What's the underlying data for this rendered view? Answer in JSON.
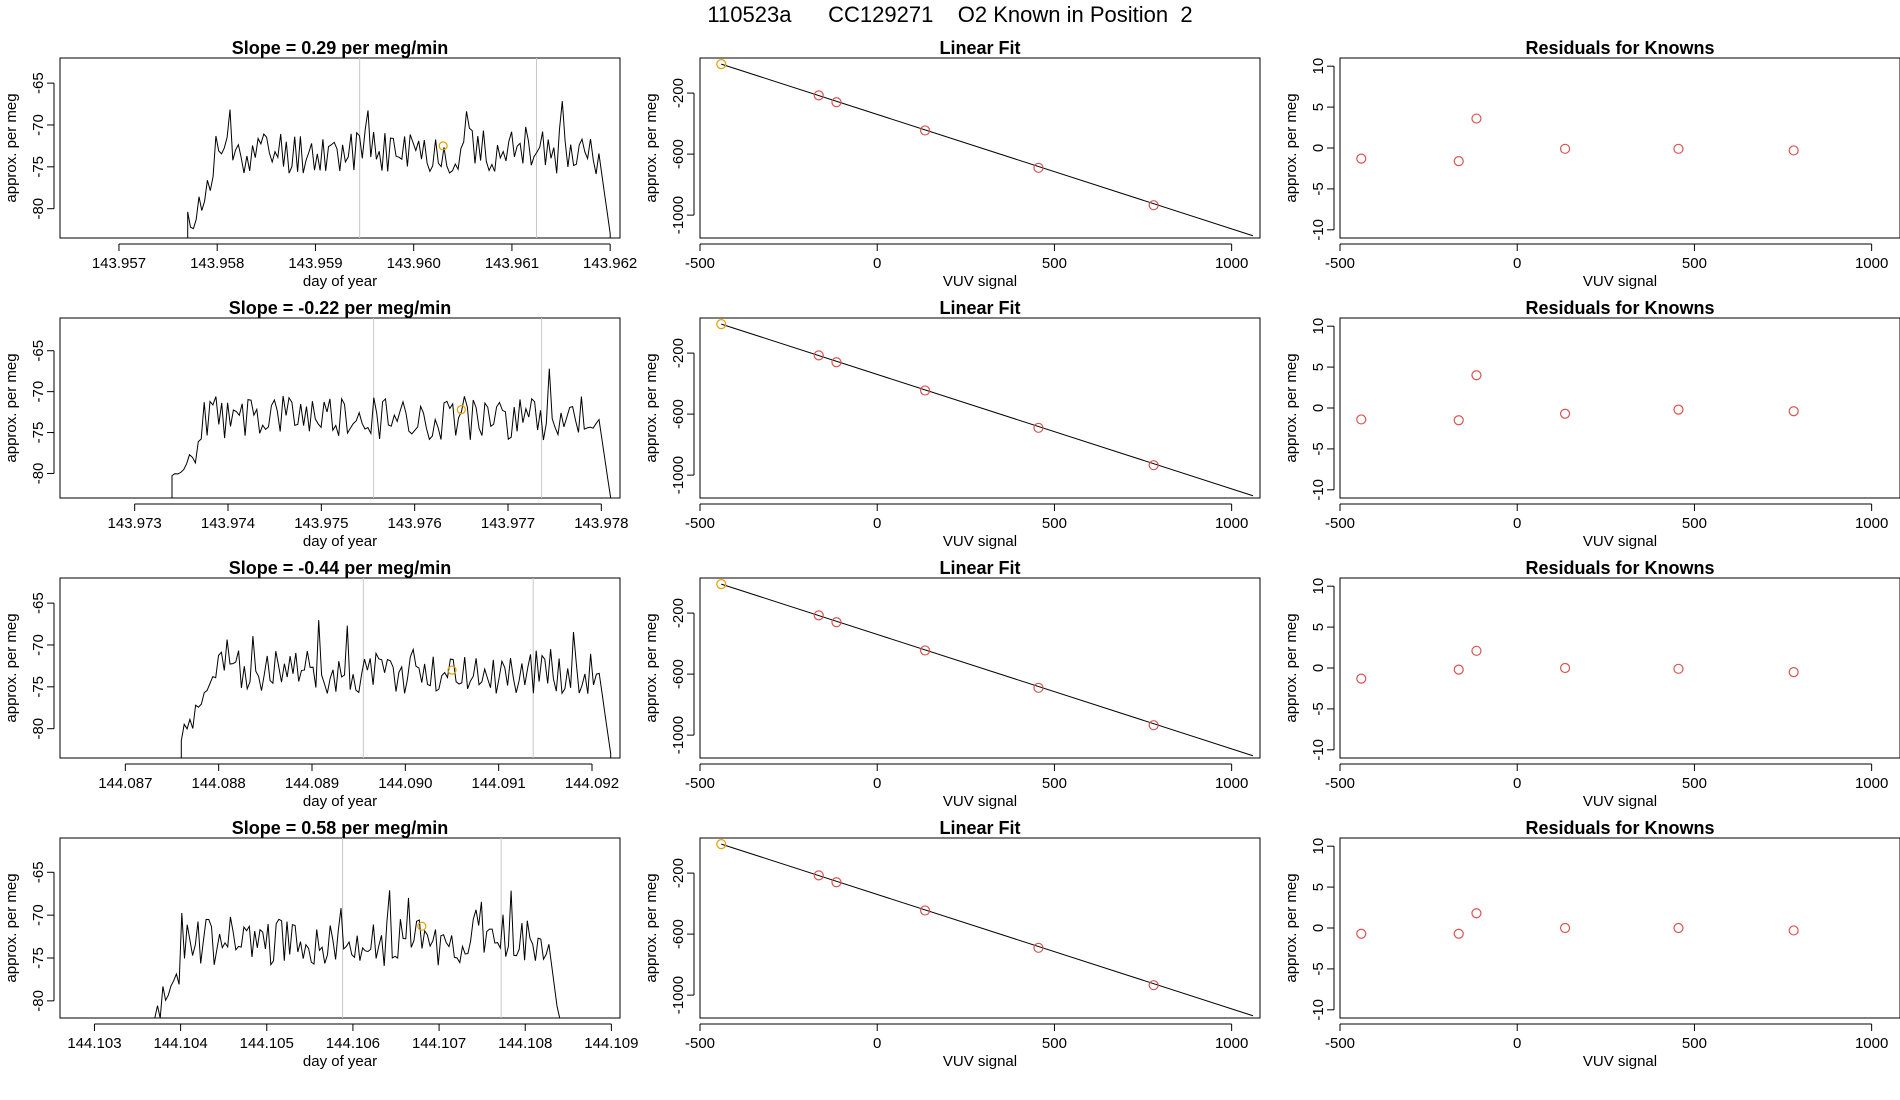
{
  "page": {
    "title": "110523a      CC129271    O2 Known in Position  2"
  },
  "colors": {
    "line": "#000000",
    "highlight": "#e69f00",
    "residual": "#d9534f",
    "vline": "#c8c8c8"
  },
  "chart_data": [
    {
      "type": "line",
      "row": 0,
      "title": "Slope =  0.29  per meg/min",
      "xlabel": "day of year",
      "ylabel": "approx. per meg",
      "xlim": [
        143.9564,
        143.9621
      ],
      "ylim": [
        -83.5,
        -62
      ],
      "xticks": [
        143.957,
        143.958,
        143.959,
        143.96,
        143.961,
        143.962
      ],
      "xtick_labels": [
        "143.957",
        "143.958",
        "143.959",
        "143.960",
        "143.961",
        "143.962"
      ],
      "yticks": [
        -80,
        -75,
        -70,
        -65
      ],
      "ytick_labels": [
        "-80",
        "-75",
        "-70",
        "-65"
      ],
      "baseline": -83.5,
      "series_start": 143.9577,
      "series_end": 143.962,
      "vlines": [
        143.95945,
        143.96125
      ],
      "highlight_point": {
        "x": 143.9603,
        "y": -72.5
      },
      "seed": 11
    },
    {
      "type": "scatter",
      "row": 0,
      "title": "Linear Fit",
      "xlabel": "VUV signal",
      "ylabel": "approx. per meg",
      "xlim": [
        -500,
        1080
      ],
      "ylim": [
        -1150,
        30
      ],
      "xticks": [
        -500,
        0,
        500,
        1000
      ],
      "xtick_labels": [
        "-500",
        "0",
        "500",
        "1000"
      ],
      "yticks": [
        -1000,
        -600,
        -200
      ],
      "ytick_labels": [
        "-1000",
        "-600",
        "-200"
      ],
      "fit_line": {
        "x": [
          -440,
          1060
        ],
        "y": [
          -10,
          -1135
        ]
      },
      "points": [
        {
          "x": -440,
          "y": -10
        },
        {
          "x": -165,
          "y": -215
        },
        {
          "x": -115,
          "y": -260
        },
        {
          "x": 135,
          "y": -445
        },
        {
          "x": 455,
          "y": -690
        },
        {
          "x": 780,
          "y": -935
        }
      ],
      "highlight_index": 0
    },
    {
      "type": "scatter",
      "row": 0,
      "title": "Residuals for Knowns",
      "xlabel": "VUV signal",
      "ylabel": "approx. per meg",
      "xlim": [
        -500,
        1080
      ],
      "ylim": [
        -11,
        11
      ],
      "xticks": [
        -500,
        0,
        500,
        1000
      ],
      "xtick_labels": [
        "-500",
        "0",
        "500",
        "1000"
      ],
      "yticks": [
        -10,
        -5,
        0,
        5,
        10
      ],
      "ytick_labels": [
        "-10",
        "-5",
        "0",
        "5",
        "10"
      ],
      "points": [
        {
          "x": -440,
          "y": -1.3
        },
        {
          "x": -165,
          "y": -1.6
        },
        {
          "x": -115,
          "y": 3.6
        },
        {
          "x": 135,
          "y": -0.1
        },
        {
          "x": 455,
          "y": -0.1
        },
        {
          "x": 780,
          "y": -0.3
        }
      ]
    },
    {
      "type": "line",
      "row": 1,
      "title": "Slope =  -0.22  per meg/min",
      "xlabel": "day of year",
      "ylabel": "approx. per meg",
      "xlim": [
        143.9722,
        143.9782
      ],
      "ylim": [
        -83,
        -61
      ],
      "xticks": [
        143.973,
        143.974,
        143.975,
        143.976,
        143.977,
        143.978
      ],
      "xtick_labels": [
        "143.973",
        "143.974",
        "143.975",
        "143.976",
        "143.977",
        "143.978"
      ],
      "yticks": [
        -80,
        -75,
        -70,
        -65
      ],
      "ytick_labels": [
        "-80",
        "-75",
        "-70",
        "-65"
      ],
      "baseline": -83,
      "series_start": 143.9734,
      "series_end": 143.9781,
      "vlines": [
        143.97556,
        143.97736
      ],
      "highlight_point": {
        "x": 143.9765,
        "y": -72.2
      },
      "seed": 23
    },
    {
      "type": "scatter",
      "row": 1,
      "title": "Linear Fit",
      "xlabel": "VUV signal",
      "ylabel": "approx. per meg",
      "xlim": [
        -500,
        1080
      ],
      "ylim": [
        -1150,
        30
      ],
      "xticks": [
        -500,
        0,
        500,
        1000
      ],
      "xtick_labels": [
        "-500",
        "0",
        "500",
        "1000"
      ],
      "yticks": [
        -1000,
        -600,
        -200
      ],
      "ytick_labels": [
        "-1000",
        "-600",
        "-200"
      ],
      "fit_line": {
        "x": [
          -440,
          1060
        ],
        "y": [
          -10,
          -1135
        ]
      },
      "points": [
        {
          "x": -440,
          "y": -10
        },
        {
          "x": -165,
          "y": -215
        },
        {
          "x": -115,
          "y": -260
        },
        {
          "x": 135,
          "y": -445
        },
        {
          "x": 455,
          "y": -690
        },
        {
          "x": 780,
          "y": -935
        }
      ],
      "highlight_index": 0
    },
    {
      "type": "scatter",
      "row": 1,
      "title": "Residuals for Knowns",
      "xlabel": "VUV signal",
      "ylabel": "approx. per meg",
      "xlim": [
        -500,
        1080
      ],
      "ylim": [
        -11,
        11
      ],
      "xticks": [
        -500,
        0,
        500,
        1000
      ],
      "xtick_labels": [
        "-500",
        "0",
        "500",
        "1000"
      ],
      "yticks": [
        -10,
        -5,
        0,
        5,
        10
      ],
      "ytick_labels": [
        "-10",
        "-5",
        "0",
        "5",
        "10"
      ],
      "points": [
        {
          "x": -440,
          "y": -1.4
        },
        {
          "x": -165,
          "y": -1.5
        },
        {
          "x": -115,
          "y": 4.0
        },
        {
          "x": 135,
          "y": -0.7
        },
        {
          "x": 455,
          "y": -0.2
        },
        {
          "x": 780,
          "y": -0.4
        }
      ]
    },
    {
      "type": "line",
      "row": 2,
      "title": "Slope =  -0.44  per meg/min",
      "xlabel": "day of year",
      "ylabel": "approx. per meg",
      "xlim": [
        144.0863,
        144.0923
      ],
      "ylim": [
        -83.5,
        -62
      ],
      "xticks": [
        144.087,
        144.088,
        144.089,
        144.09,
        144.091,
        144.092
      ],
      "xtick_labels": [
        "144.087",
        "144.088",
        "144.089",
        "144.090",
        "144.091",
        "144.092"
      ],
      "yticks": [
        -80,
        -75,
        -70,
        -65
      ],
      "ytick_labels": [
        "-80",
        "-75",
        "-70",
        "-65"
      ],
      "baseline": -83.5,
      "series_start": 144.0876,
      "series_end": 144.0922,
      "vlines": [
        144.08955,
        144.09137
      ],
      "highlight_point": {
        "x": 144.0905,
        "y": -73.0
      },
      "seed": 37
    },
    {
      "type": "scatter",
      "row": 2,
      "title": "Linear Fit",
      "xlabel": "VUV signal",
      "ylabel": "approx. per meg",
      "xlim": [
        -500,
        1080
      ],
      "ylim": [
        -1150,
        30
      ],
      "xticks": [
        -500,
        0,
        500,
        1000
      ],
      "xtick_labels": [
        "-500",
        "0",
        "500",
        "1000"
      ],
      "yticks": [
        -1000,
        -600,
        -200
      ],
      "ytick_labels": [
        "-1000",
        "-600",
        "-200"
      ],
      "fit_line": {
        "x": [
          -440,
          1060
        ],
        "y": [
          -10,
          -1135
        ]
      },
      "points": [
        {
          "x": -440,
          "y": -10
        },
        {
          "x": -165,
          "y": -215
        },
        {
          "x": -115,
          "y": -260
        },
        {
          "x": 135,
          "y": -445
        },
        {
          "x": 455,
          "y": -690
        },
        {
          "x": 780,
          "y": -935
        }
      ],
      "highlight_index": 0
    },
    {
      "type": "scatter",
      "row": 2,
      "title": "Residuals for Knowns",
      "xlabel": "VUV signal",
      "ylabel": "approx. per meg",
      "xlim": [
        -500,
        1080
      ],
      "ylim": [
        -11,
        11
      ],
      "xticks": [
        -500,
        0,
        500,
        1000
      ],
      "xtick_labels": [
        "-500",
        "0",
        "500",
        "1000"
      ],
      "yticks": [
        -10,
        -5,
        0,
        5,
        10
      ],
      "ytick_labels": [
        "-10",
        "-5",
        "0",
        "5",
        "10"
      ],
      "points": [
        {
          "x": -440,
          "y": -1.3
        },
        {
          "x": -165,
          "y": -0.2
        },
        {
          "x": -115,
          "y": 2.1
        },
        {
          "x": 135,
          "y": 0.0
        },
        {
          "x": 455,
          "y": -0.1
        },
        {
          "x": 780,
          "y": -0.5
        }
      ]
    },
    {
      "type": "line",
      "row": 3,
      "title": "Slope =  0.58  per meg/min",
      "xlabel": "day of year",
      "ylabel": "approx. per meg",
      "xlim": [
        144.1026,
        144.1091
      ],
      "ylim": [
        -82,
        -61
      ],
      "xticks": [
        144.103,
        144.104,
        144.105,
        144.106,
        144.107,
        144.108,
        144.109
      ],
      "xtick_labels": [
        "144.103",
        "144.104",
        "144.105",
        "144.106",
        "144.107",
        "144.108",
        "144.109"
      ],
      "yticks": [
        -80,
        -75,
        -70,
        -65
      ],
      "ytick_labels": [
        "-80",
        "-75",
        "-70",
        "-65"
      ],
      "baseline": -82,
      "series_start": 144.1037,
      "series_end": 144.1084,
      "vlines": [
        144.10588,
        144.10772
      ],
      "highlight_point": {
        "x": 144.1068,
        "y": -71.3
      },
      "seed": 53
    },
    {
      "type": "scatter",
      "row": 3,
      "title": "Linear Fit",
      "xlabel": "VUV signal",
      "ylabel": "approx. per meg",
      "xlim": [
        -500,
        1080
      ],
      "ylim": [
        -1150,
        30
      ],
      "xticks": [
        -500,
        0,
        500,
        1000
      ],
      "xtick_labels": [
        "-500",
        "0",
        "500",
        "1000"
      ],
      "yticks": [
        -1000,
        -600,
        -200
      ],
      "ytick_labels": [
        "-1000",
        "-600",
        "-200"
      ],
      "fit_line": {
        "x": [
          -440,
          1060
        ],
        "y": [
          -10,
          -1135
        ]
      },
      "points": [
        {
          "x": -440,
          "y": -10
        },
        {
          "x": -165,
          "y": -215
        },
        {
          "x": -115,
          "y": -260
        },
        {
          "x": 135,
          "y": -445
        },
        {
          "x": 455,
          "y": -690
        },
        {
          "x": 780,
          "y": -935
        }
      ],
      "highlight_index": 0
    },
    {
      "type": "scatter",
      "row": 3,
      "title": "Residuals for Knowns",
      "xlabel": "VUV signal",
      "ylabel": "approx. per meg",
      "xlim": [
        -500,
        1080
      ],
      "ylim": [
        -11,
        11
      ],
      "xticks": [
        -500,
        0,
        500,
        1000
      ],
      "xtick_labels": [
        "-500",
        "0",
        "500",
        "1000"
      ],
      "yticks": [
        -10,
        -5,
        0,
        5,
        10
      ],
      "ytick_labels": [
        "-10",
        "-5",
        "0",
        "5",
        "10"
      ],
      "points": [
        {
          "x": -440,
          "y": -0.7
        },
        {
          "x": -165,
          "y": -0.7
        },
        {
          "x": -115,
          "y": 1.8
        },
        {
          "x": 135,
          "y": 0.0
        },
        {
          "x": 455,
          "y": 0.0
        },
        {
          "x": 780,
          "y": -0.3
        }
      ]
    }
  ]
}
